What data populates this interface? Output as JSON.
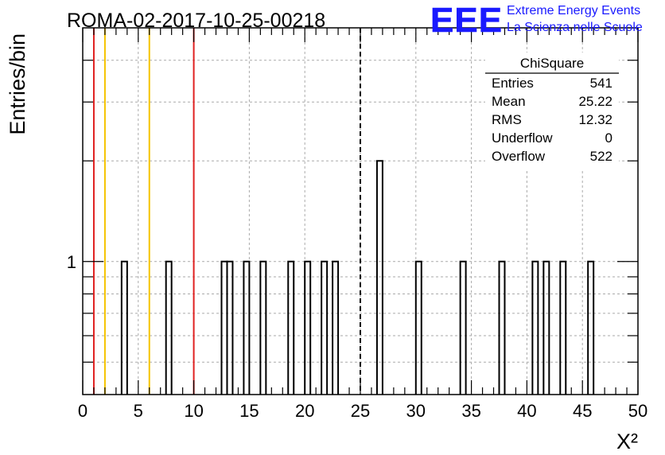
{
  "header": {
    "run_title": "ROMA-02-2017-10-25-00218",
    "logo_text": "EEE",
    "logo_line1": "Extreme Energy Events",
    "logo_line2": "La Scienza nelle Scuole"
  },
  "stats_box": {
    "title": "ChiSquare",
    "rows": [
      {
        "label": "Entries",
        "value": "541"
      },
      {
        "label": "Mean",
        "value": "25.22"
      },
      {
        "label": "RMS",
        "value": "12.32"
      },
      {
        "label": "Underflow",
        "value": "0"
      },
      {
        "label": "Overflow",
        "value": "522"
      }
    ]
  },
  "colors": {
    "red_line": "#e02020",
    "yellow_line": "#f5c400",
    "logo_blue": "#1a1aff"
  },
  "chart_data": {
    "type": "bar",
    "histogram": true,
    "xlabel": "X²",
    "ylabel": "Entries/bin",
    "xlim": [
      0,
      50
    ],
    "ylim": [
      0.4,
      5
    ],
    "yscale": "log",
    "grid": true,
    "bin_width": 0.5,
    "x_ticks": [
      "0",
      "5",
      "10",
      "15",
      "20",
      "25",
      "30",
      "35",
      "40",
      "45",
      "50"
    ],
    "y_ticks": [
      "1"
    ],
    "bins": [
      {
        "x": 3.5,
        "count": 1
      },
      {
        "x": 7.5,
        "count": 1
      },
      {
        "x": 12.5,
        "count": 1
      },
      {
        "x": 13.0,
        "count": 1
      },
      {
        "x": 14.5,
        "count": 1
      },
      {
        "x": 16.0,
        "count": 1
      },
      {
        "x": 18.5,
        "count": 1
      },
      {
        "x": 20.0,
        "count": 1
      },
      {
        "x": 21.5,
        "count": 1
      },
      {
        "x": 22.5,
        "count": 1
      },
      {
        "x": 26.5,
        "count": 2
      },
      {
        "x": 30.0,
        "count": 1
      },
      {
        "x": 34.0,
        "count": 1
      },
      {
        "x": 37.5,
        "count": 1
      },
      {
        "x": 40.5,
        "count": 1
      },
      {
        "x": 41.5,
        "count": 1
      },
      {
        "x": 43.0,
        "count": 1
      },
      {
        "x": 45.5,
        "count": 1
      }
    ],
    "vertical_lines": [
      {
        "x": 1,
        "color": "red"
      },
      {
        "x": 2,
        "color": "yellow"
      },
      {
        "x": 6,
        "color": "yellow"
      },
      {
        "x": 10,
        "color": "red"
      },
      {
        "x": 25,
        "color": "black",
        "style": "dashed"
      }
    ]
  }
}
